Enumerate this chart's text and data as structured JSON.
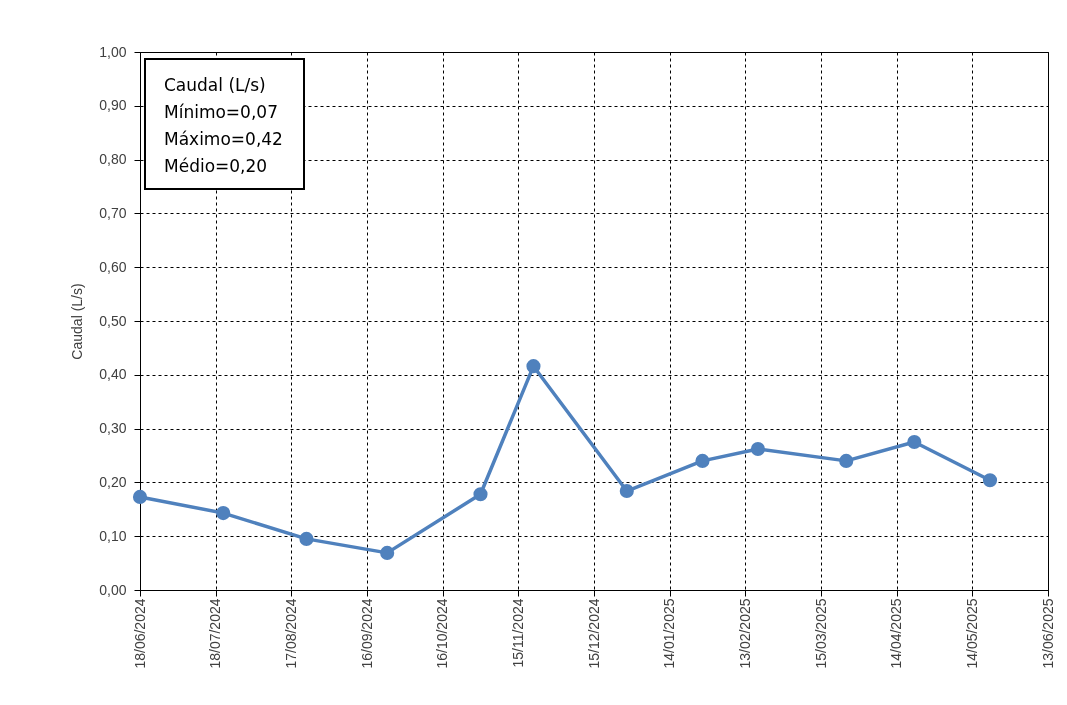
{
  "chart_data": {
    "type": "line",
    "ylabel": "Caudal (L/s)",
    "annotations": [
      "Caudal (L/s)",
      "Mínimo=0,07",
      "Máximo=0,42",
      "Médio=0,20"
    ],
    "x": [
      "2024-06-18",
      "2024-07-21",
      "2024-08-23",
      "2024-09-24",
      "2024-10-31",
      "2024-11-21",
      "2024-12-28",
      "2025-01-27",
      "2025-02-18",
      "2025-03-25",
      "2025-04-21",
      "2025-05-21"
    ],
    "series": [
      {
        "color": "#4f81bd",
        "values": [
          0.173,
          0.143,
          0.095,
          0.069,
          0.178,
          0.416,
          0.184,
          0.24,
          0.262,
          0.24,
          0.275,
          0.204
        ]
      }
    ],
    "xlim": [
      "2024-06-18",
      "2025-06-13"
    ],
    "xticks": [
      {
        "value": "2024-06-18",
        "label": "18/06/2024"
      },
      {
        "value": "2024-07-18",
        "label": "18/07/2024"
      },
      {
        "value": "2024-08-17",
        "label": "17/08/2024"
      },
      {
        "value": "2024-09-16",
        "label": "16/09/2024"
      },
      {
        "value": "2024-10-16",
        "label": "16/10/2024"
      },
      {
        "value": "2024-11-15",
        "label": "15/11/2024"
      },
      {
        "value": "2024-12-15",
        "label": "15/12/2024"
      },
      {
        "value": "2025-01-14",
        "label": "14/01/2025"
      },
      {
        "value": "2025-02-13",
        "label": "13/02/2025"
      },
      {
        "value": "2025-03-15",
        "label": "15/03/2025"
      },
      {
        "value": "2025-04-14",
        "label": "14/04/2025"
      },
      {
        "value": "2025-05-14",
        "label": "14/05/2025"
      },
      {
        "value": "2025-06-13",
        "label": "13/06/2025"
      }
    ],
    "ylim": [
      0,
      1
    ],
    "yticks": [
      {
        "value": 0,
        "label": "0,00"
      },
      {
        "value": 0.1,
        "label": "0,10"
      },
      {
        "value": 0.2,
        "label": "0,20"
      },
      {
        "value": 0.3,
        "label": "0,30"
      },
      {
        "value": 0.4,
        "label": "0,40"
      },
      {
        "value": 0.5,
        "label": "0,50"
      },
      {
        "value": 0.6,
        "label": "0,60"
      },
      {
        "value": 0.7,
        "label": "0,70"
      },
      {
        "value": 0.8,
        "label": "0,80"
      },
      {
        "value": 0.9,
        "label": "0,90"
      },
      {
        "value": 1,
        "label": "1,00"
      }
    ],
    "grid": true,
    "marker": "circle",
    "line_style": "solid"
  }
}
